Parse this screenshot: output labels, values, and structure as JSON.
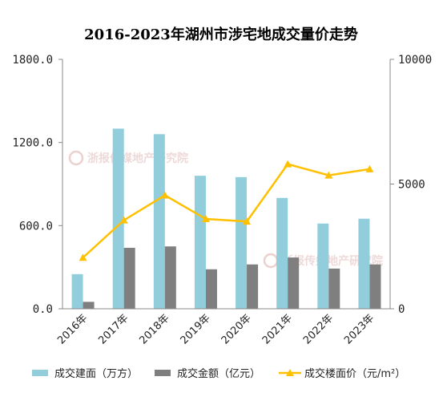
{
  "chart_data": {
    "type": "bar",
    "title": "2016-2023年湖州市涉宅地成交量价走势",
    "categories": [
      "2016年",
      "2017年",
      "2018年",
      "2019年",
      "2020年",
      "2021年",
      "2022年",
      "2023年"
    ],
    "series": [
      {
        "name": "成交建面（万方）",
        "type": "bar",
        "axis": "left",
        "color": "#92cddc",
        "values": [
          250,
          1300,
          1260,
          960,
          950,
          800,
          615,
          650
        ]
      },
      {
        "name": "成交金额（亿元）",
        "type": "bar",
        "axis": "left",
        "color": "#7f7f7f",
        "values": [
          50,
          440,
          450,
          285,
          320,
          370,
          290,
          320
        ]
      },
      {
        "name": "成交楼面价（元/m²）",
        "type": "line",
        "axis": "right",
        "color": "#ffc000",
        "values": [
          2050,
          3550,
          4550,
          3600,
          3500,
          5800,
          5350,
          5600
        ]
      }
    ],
    "y_left": {
      "min": 0,
      "max": 1800,
      "ticks": [
        "0.0",
        "600.0",
        "1200.0",
        "1800.0"
      ]
    },
    "y_right": {
      "min": 0,
      "max": 10000,
      "ticks": [
        "0",
        "5000",
        "10000"
      ]
    },
    "grid": false,
    "legend_position": "bottom"
  },
  "watermark": {
    "text": "浙报传媒地产研究院",
    "color": "#e0b0b0"
  }
}
